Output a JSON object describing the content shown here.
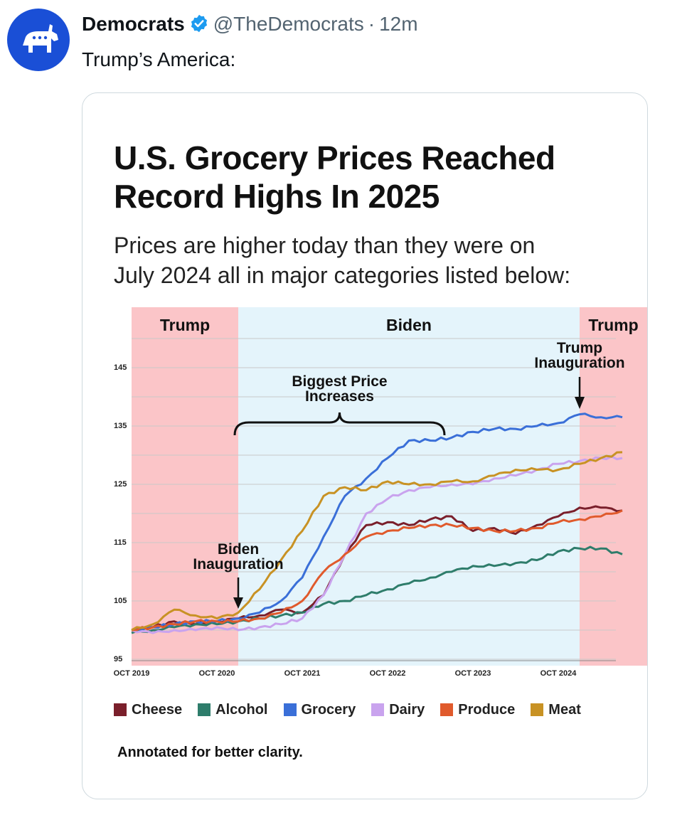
{
  "tweet": {
    "display_name": "Democrats",
    "handle": "@TheDemocrats",
    "separator": "·",
    "time": "12m",
    "text": "Trump’s America:",
    "avatar_icon": "donkey-logo-icon",
    "verified_icon": "verified-badge-icon",
    "colors": {
      "avatar_bg": "#1a4fd6",
      "verified": "#1d9bf0"
    }
  },
  "card": {
    "title": "U.S. Grocery Prices Reached\nRecord Highs In 2025",
    "subtitle": "Prices are higher today than they were on\nJuly 2024 all in major categories listed below:",
    "footnote": "Annotated for better clarity."
  },
  "chart_data": {
    "type": "line",
    "title": "U.S. Grocery Prices Reached Record Highs In 2025",
    "subtitle": "Prices are higher today than they were on July 2024 all in major categories listed below:",
    "xlabel": "",
    "ylabel": "",
    "x_ticks": [
      "OCT 2019",
      "OCT 2020",
      "OCT 2021",
      "OCT 2022",
      "OCT 2023",
      "OCT 2024"
    ],
    "y_ticks": [
      95,
      105,
      115,
      125,
      135,
      145
    ],
    "ylim": [
      95,
      146
    ],
    "grid": true,
    "legend_position": "bottom",
    "x": [
      "2019-10",
      "2020-01",
      "2020-04",
      "2020-07",
      "2020-10",
      "2021-01",
      "2021-04",
      "2021-07",
      "2021-10",
      "2022-01",
      "2022-04",
      "2022-07",
      "2022-10",
      "2023-01",
      "2023-04",
      "2023-07",
      "2023-10",
      "2024-01",
      "2024-04",
      "2024-07",
      "2024-10",
      "2025-01",
      "2025-04",
      "2025-07"
    ],
    "series": [
      {
        "name": "Cheese",
        "color": "#7a1f2b",
        "values": [
          100,
          100.5,
          101.5,
          101,
          101.5,
          102,
          102.5,
          103.5,
          103,
          106,
          113,
          118,
          118.5,
          118,
          119,
          119.5,
          117,
          117.5,
          116.5,
          118,
          119.5,
          121,
          121,
          120.5
        ]
      },
      {
        "name": "Alcohol",
        "color": "#2e7d6b",
        "values": [
          99.5,
          100,
          100.5,
          101,
          101,
          101.5,
          102,
          102.5,
          103,
          104.5,
          105,
          106,
          107,
          108,
          109,
          110,
          111,
          111,
          111.5,
          112,
          113.5,
          114,
          114,
          113
        ]
      },
      {
        "name": "Grocery",
        "color": "#3a6fd8",
        "values": [
          100,
          100.5,
          101,
          101.5,
          101.5,
          102,
          103,
          105,
          109,
          116,
          123,
          126,
          129.5,
          132.5,
          132.5,
          133,
          134,
          134.5,
          134.5,
          135,
          135.5,
          137,
          136.5,
          136.5
        ]
      },
      {
        "name": "Dairy",
        "color": "#c9a3ee",
        "values": [
          100,
          99.5,
          100,
          100,
          100.5,
          100,
          100.5,
          101,
          102,
          106,
          113,
          120,
          122.5,
          124,
          124.5,
          125,
          125,
          126,
          126.5,
          127.5,
          128.5,
          129,
          129.5,
          129.5
        ]
      },
      {
        "name": "Produce",
        "color": "#e05a2c",
        "values": [
          100,
          100.5,
          101,
          101.5,
          101.5,
          101.5,
          102,
          103,
          105,
          110,
          113,
          116,
          117,
          117.5,
          118,
          118,
          117.5,
          117,
          117,
          117.5,
          118.5,
          119,
          119.5,
          120.5
        ]
      },
      {
        "name": "Meat",
        "color": "#c89224",
        "values": [
          100,
          101,
          103.5,
          102.5,
          102,
          103,
          107,
          112,
          117,
          123,
          124.5,
          124,
          125.5,
          125,
          125,
          125.5,
          125.5,
          126.5,
          127.5,
          127.5,
          127.5,
          128.5,
          129.5,
          130.5
        ]
      }
    ],
    "regions": [
      {
        "label": "Trump",
        "from": "2019-05",
        "to": "2021-01",
        "color": "#fbc5c8"
      },
      {
        "label": "Biden",
        "from": "2021-01",
        "to": "2025-01",
        "color": "#e4f4fb"
      },
      {
        "label": "Trump",
        "from": "2025-01",
        "to": "2025-08",
        "color": "#fbc5c8"
      }
    ],
    "annotations": [
      {
        "id": "biden-inauguration",
        "lines": [
          "Biden",
          "Inauguration"
        ],
        "x": "2021-01"
      },
      {
        "id": "trump-inauguration",
        "lines": [
          "Trump",
          "Inauguration"
        ],
        "x": "2025-01"
      },
      {
        "id": "biggest-price-increases",
        "lines": [
          "Biggest Price",
          "Increases"
        ],
        "x_from": "2021-04",
        "x_to": "2023-04"
      }
    ]
  }
}
